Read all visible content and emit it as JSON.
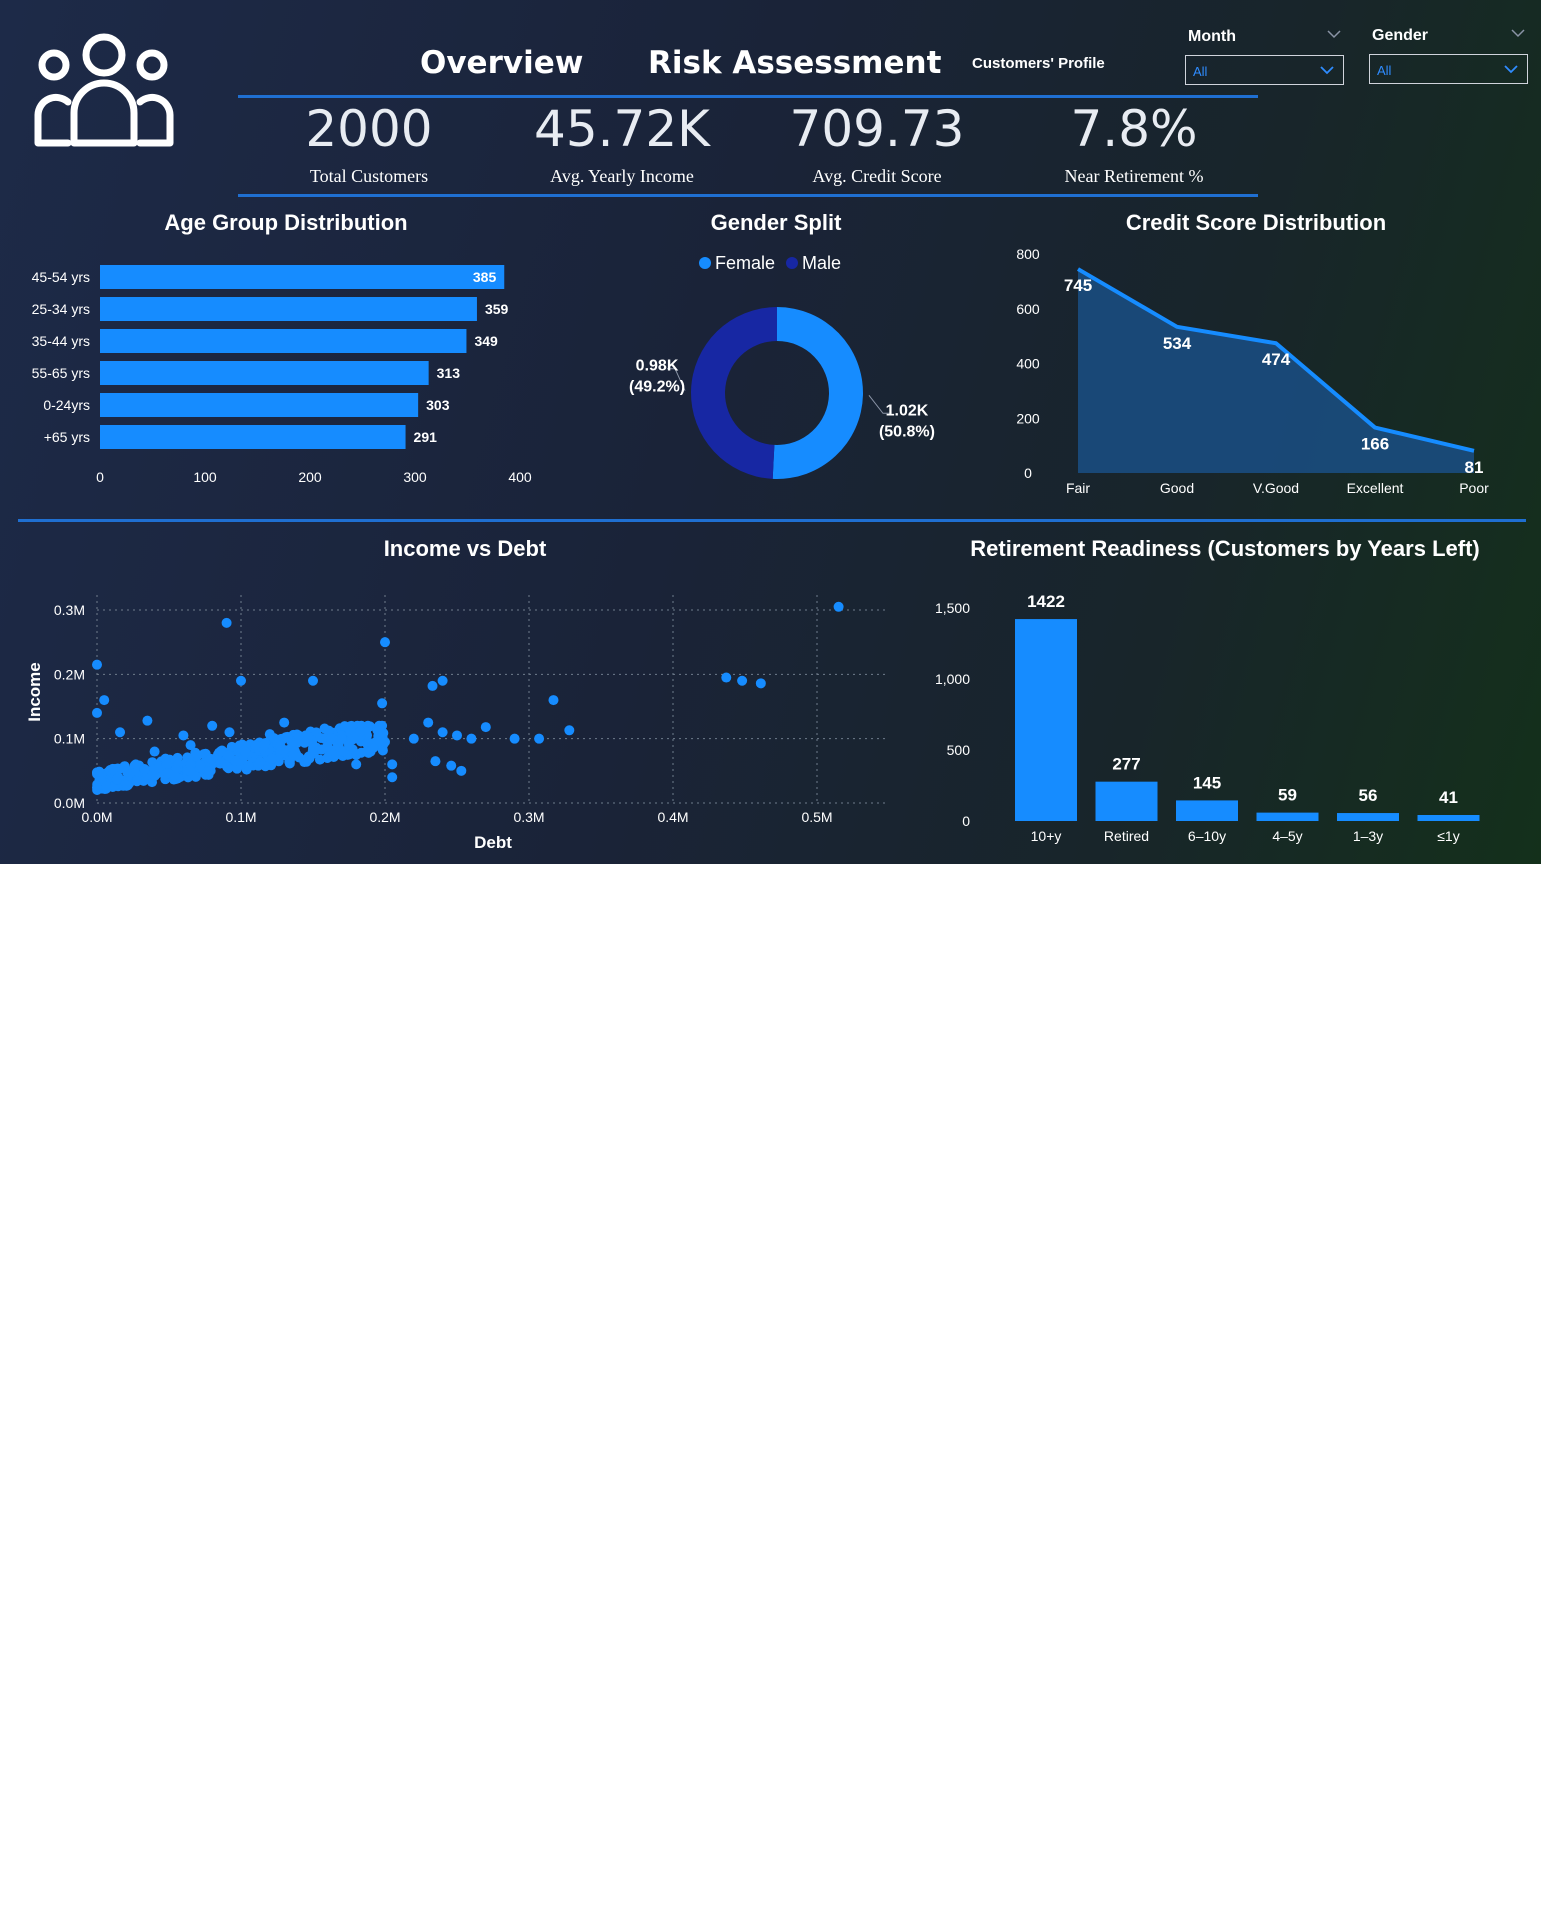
{
  "header": {
    "tabs": [
      "Overview",
      "Risk Assessment"
    ],
    "page_label": "Customers' Profile",
    "slicers": [
      {
        "label": "Month",
        "value": "All"
      },
      {
        "label": "Gender",
        "value": "All"
      }
    ]
  },
  "kpis": [
    {
      "value": "2000",
      "label": "Total Customers"
    },
    {
      "value": "45.72K",
      "label": "Avg. Yearly Income"
    },
    {
      "value": "709.73",
      "label": "Avg. Credit Score"
    },
    {
      "value": "7.8%",
      "label": "Near Retirement %"
    }
  ],
  "colors": {
    "accent": "#168cff",
    "dark_blue": "#1727a3",
    "area_fill": "#1a4c80",
    "divider": "#1f6fd1"
  },
  "chart_data": [
    {
      "type": "bar",
      "orientation": "horizontal",
      "title": "Age Group Distribution",
      "categories": [
        "45-54 yrs",
        "25-34 yrs",
        "35-44 yrs",
        "55-65 yrs",
        "0-24yrs",
        "+65 yrs"
      ],
      "values": [
        385,
        359,
        349,
        313,
        303,
        291
      ],
      "xlim": [
        0,
        400
      ],
      "xticks": [
        "0",
        "100",
        "200",
        "300",
        "400"
      ]
    },
    {
      "type": "pie",
      "variant": "donut",
      "title": "Gender Split",
      "legend": [
        "Female",
        "Male"
      ],
      "slices": [
        {
          "name": "Female",
          "value": 50.8,
          "label": "1.02K",
          "pct": "(50.8%)",
          "color": "#168cff"
        },
        {
          "name": "Male",
          "value": 49.2,
          "label": "0.98K",
          "pct": "(49.2%)",
          "color": "#1727a3"
        }
      ]
    },
    {
      "type": "area",
      "title": "Credit Score Distribution",
      "categories": [
        "Fair",
        "Good",
        "V.Good",
        "Excellent",
        "Poor"
      ],
      "values": [
        745,
        534,
        474,
        166,
        81
      ],
      "ylim": [
        0,
        800
      ],
      "yticks": [
        "0",
        "200",
        "400",
        "600",
        "800"
      ]
    },
    {
      "type": "scatter",
      "title": "Income vs Debt",
      "xlabel": "Debt",
      "ylabel": "Income",
      "xlim": [
        0,
        0.55
      ],
      "ylim": [
        0,
        0.3
      ],
      "xticks": [
        "0.0M",
        "0.1M",
        "0.2M",
        "0.3M",
        "0.4M",
        "0.5M"
      ],
      "yticks": [
        "0.0M",
        "0.1M",
        "0.2M",
        "0.3M"
      ],
      "points": [
        [
          0.515,
          0.305
        ],
        [
          0.09,
          0.28
        ],
        [
          0.2,
          0.25
        ],
        [
          0.0,
          0.215
        ],
        [
          0.1,
          0.19
        ],
        [
          0.15,
          0.19
        ],
        [
          0.24,
          0.19
        ],
        [
          0.233,
          0.182
        ],
        [
          0.437,
          0.195
        ],
        [
          0.448,
          0.19
        ],
        [
          0.461,
          0.186
        ],
        [
          0.317,
          0.16
        ],
        [
          0.005,
          0.16
        ],
        [
          0.198,
          0.155
        ],
        [
          0.328,
          0.113
        ],
        [
          0.0,
          0.14
        ],
        [
          0.29,
          0.1
        ],
        [
          0.307,
          0.1
        ],
        [
          0.27,
          0.118
        ],
        [
          0.24,
          0.11
        ],
        [
          0.22,
          0.1
        ],
        [
          0.25,
          0.105
        ],
        [
          0.23,
          0.125
        ],
        [
          0.13,
          0.125
        ],
        [
          0.08,
          0.12
        ],
        [
          0.035,
          0.128
        ],
        [
          0.016,
          0.11
        ],
        [
          0.06,
          0.105
        ],
        [
          0.092,
          0.11
        ],
        [
          0.12,
          0.107
        ],
        [
          0.14,
          0.105
        ],
        [
          0.17,
          0.1
        ],
        [
          0.2,
          0.095
        ],
        [
          0.205,
          0.06
        ],
        [
          0.235,
          0.065
        ],
        [
          0.246,
          0.058
        ],
        [
          0.253,
          0.05
        ],
        [
          0.205,
          0.04
        ],
        [
          0.18,
          0.06
        ],
        [
          0.16,
          0.07
        ],
        [
          0.19,
          0.08
        ],
        [
          0.26,
          0.1
        ],
        [
          0.065,
          0.09
        ],
        [
          0.04,
          0.08
        ],
        [
          0.11,
          0.09
        ],
        [
          0.15,
          0.085
        ],
        [
          0.175,
          0.09
        ]
      ],
      "cluster": {
        "debt_max": 0.2,
        "income_base": 0.02,
        "income_spread": 0.06,
        "count": 420
      }
    },
    {
      "type": "bar",
      "title": "Retirement Readiness (Customers by Years Left)",
      "categories": [
        "10+y",
        "Retired",
        "6–10y",
        "4–5y",
        "1–3y",
        "≤1y"
      ],
      "values": [
        1422,
        277,
        145,
        59,
        56,
        41
      ],
      "ylim": [
        0,
        1500
      ],
      "yticks": [
        "0",
        "500",
        "1,000",
        "1,500"
      ]
    }
  ]
}
